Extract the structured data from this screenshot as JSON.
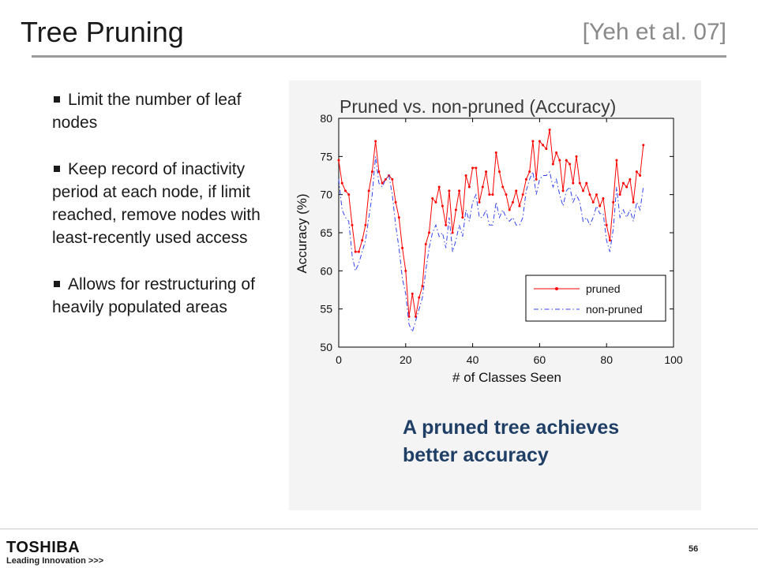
{
  "slide": {
    "title": "Tree Pruning",
    "citation": "[Yeh et al. 07]",
    "bullets": [
      "Limit the number of leaf nodes",
      "Keep record of inactivity period at each node, if limit reached, remove nodes with least-recently used access",
      "Allows for restructuring of heavily populated areas"
    ],
    "caption": "A pruned tree achieves better accuracy",
    "page_number": "56",
    "logo": {
      "brand": "TOSHIBA",
      "tagline": "Leading Innovation >>>"
    }
  },
  "colors": {
    "pruned": "#ff0000",
    "non_pruned": "#3344ee",
    "caption": "#1f3f66",
    "chart_title": "#3a3a3a"
  },
  "chart_data": {
    "type": "line",
    "title": "Pruned vs. non-pruned (Accuracy)",
    "xlabel": "# of Classes Seen",
    "ylabel": "Accuracy (%)",
    "xlim": [
      0,
      100
    ],
    "ylim": [
      50,
      80
    ],
    "xticks": [
      0,
      20,
      40,
      60,
      80,
      100
    ],
    "yticks": [
      50,
      55,
      60,
      65,
      70,
      75,
      80
    ],
    "grid": false,
    "legend": "lower-right",
    "x": [
      0,
      1,
      2,
      3,
      4,
      5,
      6,
      7,
      8,
      9,
      10,
      11,
      12,
      13,
      14,
      15,
      16,
      17,
      18,
      19,
      20,
      21,
      22,
      23,
      24,
      25,
      26,
      27,
      28,
      29,
      30,
      31,
      32,
      33,
      34,
      35,
      36,
      37,
      38,
      39,
      40,
      41,
      42,
      43,
      44,
      45,
      46,
      47,
      48,
      49,
      50,
      51,
      52,
      53,
      54,
      55,
      56,
      57,
      58,
      59,
      60,
      61,
      62,
      63,
      64,
      65,
      66,
      67,
      68,
      69,
      70,
      71,
      72,
      73,
      74,
      75,
      76,
      77,
      78,
      79,
      80,
      81,
      82,
      83,
      84,
      85,
      86,
      87,
      88,
      89,
      90,
      91
    ],
    "series": [
      {
        "name": "pruned",
        "line_style": "solid",
        "marker": "dot",
        "values": [
          74.5,
          71.5,
          70.5,
          70,
          66,
          62.5,
          62.5,
          64,
          66,
          70.5,
          73,
          77,
          73,
          71.5,
          72,
          72.5,
          72,
          69,
          67,
          63,
          60,
          54,
          57,
          54,
          56.5,
          58,
          63.5,
          65,
          69.5,
          69,
          71,
          68.5,
          66,
          70.5,
          65,
          68,
          70.5,
          67,
          72.5,
          71,
          73.5,
          73.5,
          69,
          71,
          73,
          70,
          70,
          75.5,
          73,
          71,
          70,
          68,
          69,
          70.5,
          68.5,
          70,
          72,
          73,
          77,
          72,
          77,
          76.5,
          76,
          78.5,
          74,
          75.5,
          74.5,
          70.5,
          74.5,
          74,
          71.5,
          75,
          71.5,
          70.5,
          71.5,
          70,
          69,
          70,
          68.5,
          69.5,
          66,
          64,
          69,
          74.5,
          70,
          71.5,
          71,
          72,
          69,
          73,
          72.5,
          76.5
        ]
      },
      {
        "name": "non-pruned",
        "line_style": "dashdot",
        "marker": "none",
        "values": [
          72,
          68,
          67,
          66.5,
          62,
          60,
          61,
          62.5,
          64,
          67,
          70,
          75,
          71.5,
          71,
          72,
          72.5,
          70,
          66,
          63,
          59,
          57,
          53,
          52,
          53.5,
          55,
          56.5,
          60,
          63,
          65,
          66,
          64.5,
          65,
          63,
          67,
          62.5,
          64,
          66,
          64.5,
          68,
          66.5,
          69,
          70,
          67,
          67,
          68,
          66,
          66,
          69,
          67,
          68,
          67,
          66.5,
          67,
          66,
          66,
          67,
          70.5,
          72,
          73,
          70,
          72,
          72.5,
          72.5,
          73,
          71,
          72,
          70,
          68.5,
          70.5,
          71,
          69,
          70,
          69,
          66.5,
          67,
          66,
          67,
          68.5,
          67.5,
          67.5,
          64,
          62.5,
          65.5,
          71,
          67,
          68,
          67,
          68,
          66.5,
          69,
          68,
          71
        ]
      }
    ]
  }
}
